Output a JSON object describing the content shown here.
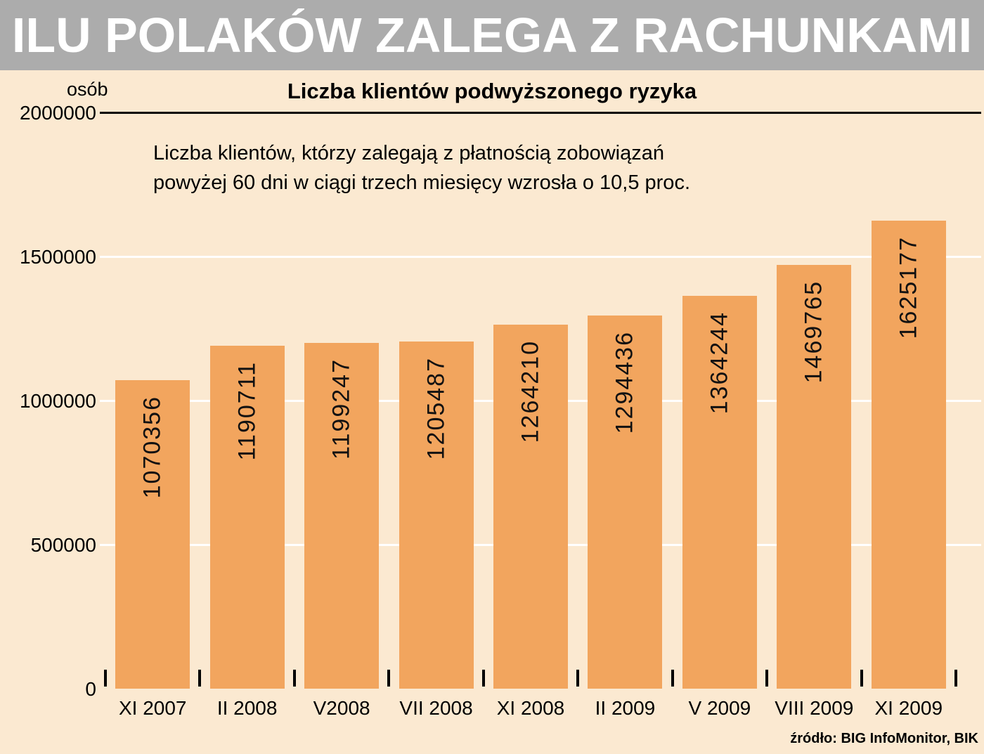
{
  "header": {
    "title": "ILU POLAKÓW ZALEGA Z RACHUNKAMI"
  },
  "chart": {
    "unit_label": "osób",
    "title": "Liczba klientów podwyższonego ryzyka",
    "subtitle_line1": "Liczba klientów, którzy zalegają z płatnością zobowiązań",
    "subtitle_line2": "powyżej 60 dni w ciągi trzech miesięcy wzrosła o 10,5 proc.",
    "source": "źródło: BIG InfoMonitor, BIK"
  },
  "colors": {
    "header_bg": "#ACACAC",
    "background": "#FBE9D1",
    "bar": "#F2A55E",
    "grid": "#FFFFFF",
    "top_line": "#000000",
    "header_text": "#FFFFFF"
  },
  "chart_data": {
    "type": "bar",
    "title": "Liczba klientów podwyższonego ryzyka",
    "categories": [
      "XI 2007",
      "II 2008",
      "V2008",
      "VII 2008",
      "XI 2008",
      "II 2009",
      "V 2009",
      "VIII 2009",
      "XI 2009"
    ],
    "values": [
      1070356,
      1190711,
      1199247,
      1205487,
      1264210,
      1294436,
      1364244,
      1469765,
      1625177
    ],
    "xlabel": "",
    "ylabel": "osób",
    "ylim": [
      0,
      2000000
    ],
    "yticks": [
      0,
      500000,
      1000000,
      1500000,
      2000000
    ],
    "grid": true,
    "legend": "none",
    "bar_label_rotation": "vertical-bottom-to-top"
  }
}
